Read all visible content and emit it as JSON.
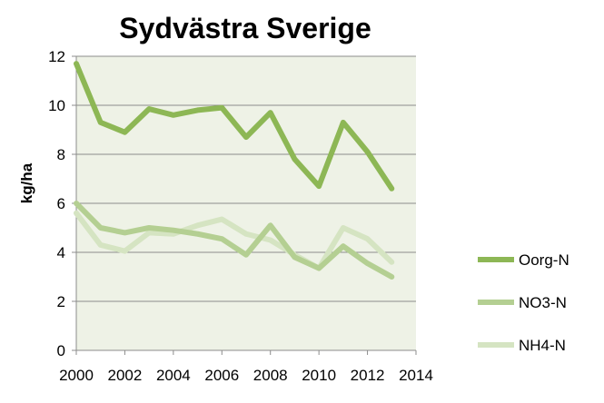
{
  "chart_data": {
    "type": "line",
    "title": "Sydvästra Sverige",
    "xlabel": "",
    "ylabel": "kg/ha",
    "xlim": [
      2000,
      2014
    ],
    "ylim": [
      0,
      12
    ],
    "xticks": [
      2000,
      2002,
      2004,
      2006,
      2008,
      2010,
      2012,
      2014
    ],
    "yticks": [
      0,
      2,
      4,
      6,
      8,
      10,
      12
    ],
    "grid": true,
    "legend_position": "right",
    "plot_background": "#eef2e6",
    "x": [
      2000,
      2001,
      2002,
      2003,
      2004,
      2005,
      2006,
      2007,
      2008,
      2009,
      2010,
      2011,
      2012,
      2013
    ],
    "series": [
      {
        "name": "Oorg-N",
        "color": "#8db755",
        "values": [
          11.7,
          9.3,
          8.9,
          9.85,
          9.6,
          9.8,
          9.9,
          8.7,
          9.7,
          7.8,
          6.7,
          9.3,
          8.1,
          6.6
        ]
      },
      {
        "name": "NO3-N",
        "color": "#b4cf92",
        "values": [
          6.0,
          5.0,
          4.8,
          5.0,
          4.9,
          4.75,
          4.55,
          3.9,
          5.1,
          3.8,
          3.35,
          4.25,
          3.55,
          3.0
        ]
      },
      {
        "name": "NH4-N",
        "color": "#d5e4c2",
        "values": [
          5.6,
          4.3,
          4.05,
          4.8,
          4.75,
          5.1,
          5.35,
          4.75,
          4.5,
          3.9,
          3.35,
          5.0,
          4.55,
          3.6
        ]
      }
    ]
  }
}
